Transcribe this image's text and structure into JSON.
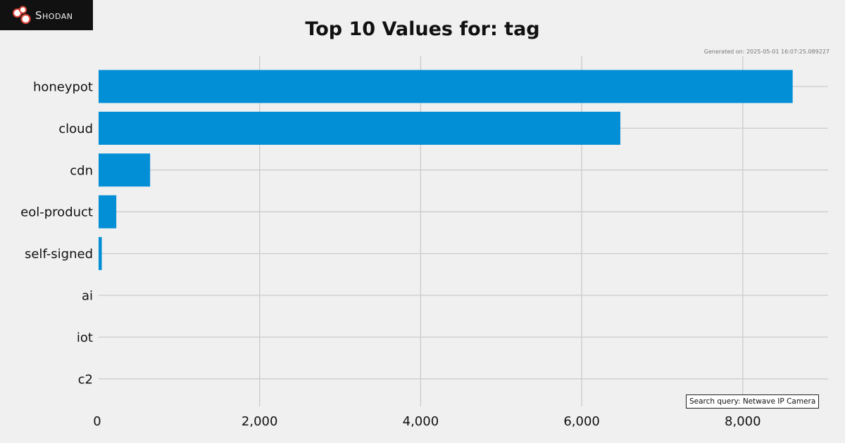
{
  "brand": {
    "logo_text": "Shodan",
    "logo_icon": "shodan-logo-icon"
  },
  "generated_text": "Generated on: 2025-05-01 16:07:25.089227",
  "search_query_text": "Search query: Netwave IP Camera",
  "colors": {
    "bar": "#038fd6",
    "grid": "#cbcbcb",
    "background": "#f0f0f0",
    "text": "#111111"
  },
  "chart_data": {
    "type": "bar",
    "orientation": "horizontal",
    "title": "Top 10 Values for: tag",
    "xlabel": "",
    "ylabel": "",
    "categories": [
      "honeypot",
      "cloud",
      "cdn",
      "eol-product",
      "self-signed",
      "ai",
      "iot",
      "c2"
    ],
    "values": [
      8620,
      6480,
      640,
      220,
      40,
      0,
      0,
      0
    ],
    "x_ticks": [
      0,
      2000,
      4000,
      6000,
      8000
    ],
    "x_tick_labels": [
      "0",
      "2,000",
      "4,000",
      "6,000",
      "8,000"
    ],
    "xlim": [
      0,
      9060
    ],
    "grid": true
  }
}
